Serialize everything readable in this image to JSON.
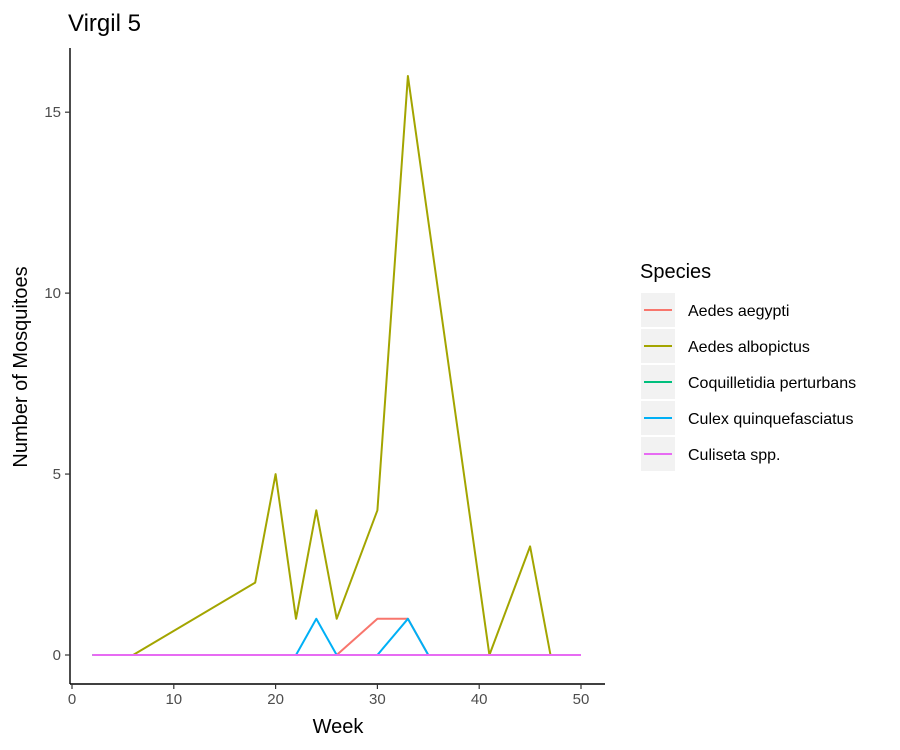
{
  "chart_data": {
    "type": "line",
    "title": "Virgil 5",
    "xlabel": "Week",
    "ylabel": "Number of Mosquitoes",
    "xlim": [
      0,
      50
    ],
    "ylim": [
      0,
      16
    ],
    "x_ticks": [
      0,
      10,
      20,
      30,
      40,
      50
    ],
    "y_ticks": [
      0,
      5,
      10,
      15
    ],
    "grid": false,
    "legend": {
      "title": "Species",
      "position": "right"
    },
    "series": [
      {
        "name": "Aedes aegypti",
        "color": "#F8766D",
        "x": [
          2,
          26,
          30,
          33,
          35,
          50
        ],
        "y": [
          0,
          0,
          1,
          1,
          0,
          0
        ]
      },
      {
        "name": "Aedes albopictus",
        "color": "#A3A500",
        "x": [
          2,
          6,
          18,
          20,
          22,
          24,
          26,
          30,
          33,
          41,
          45,
          47,
          50
        ],
        "y": [
          0,
          0,
          2,
          5,
          1,
          4,
          1,
          4,
          16,
          0,
          3,
          0,
          0
        ]
      },
      {
        "name": "Coquilletidia perturbans",
        "color": "#00BF7D",
        "x": [
          2,
          50
        ],
        "y": [
          0,
          0
        ]
      },
      {
        "name": "Culex quinquefasciatus",
        "color": "#00B0F6",
        "x": [
          2,
          22,
          24,
          26,
          30,
          33,
          35,
          50
        ],
        "y": [
          0,
          0,
          1,
          0,
          0,
          1,
          0,
          0
        ]
      },
      {
        "name": "Culiseta spp.",
        "color": "#E76BF3",
        "x": [
          2,
          50
        ],
        "y": [
          0,
          0
        ]
      }
    ]
  }
}
